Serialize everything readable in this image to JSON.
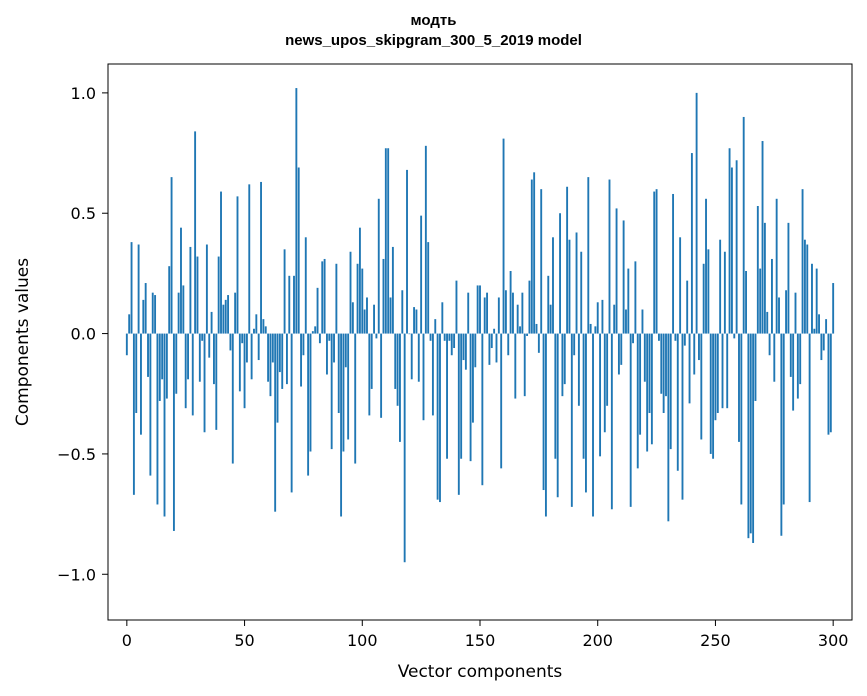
{
  "chart_data": {
    "type": "bar",
    "title": "модть",
    "subtitle": "news_upos_skipgram_300_5_2019 model",
    "xlabel": "Vector components",
    "ylabel": "Components values",
    "xlim": [
      -8,
      308
    ],
    "ylim": [
      -1.19,
      1.12
    ],
    "xticks": [
      0,
      50,
      100,
      150,
      200,
      250,
      300
    ],
    "yticks": [
      -1.0,
      -0.5,
      0.0,
      0.5,
      1.0
    ],
    "ytick_labels": [
      "−1.0",
      "−0.5",
      "0.0",
      "0.5",
      "1.0"
    ],
    "bar_color": "#1f77b4",
    "x": "0..299",
    "values": [
      -0.09,
      0.08,
      0.38,
      -0.67,
      -0.33,
      0.37,
      -0.42,
      0.14,
      0.21,
      -0.18,
      -0.59,
      0.17,
      0.16,
      -0.71,
      -0.28,
      -0.19,
      -0.76,
      -0.27,
      0.28,
      0.65,
      -0.82,
      -0.25,
      0.17,
      0.44,
      0.2,
      -0.31,
      -0.19,
      0.36,
      -0.34,
      0.84,
      0.32,
      -0.2,
      -0.03,
      -0.41,
      0.37,
      -0.1,
      0.09,
      -0.21,
      -0.4,
      0.32,
      0.59,
      0.12,
      0.14,
      0.16,
      -0.07,
      -0.54,
      0.17,
      0.57,
      -0.24,
      -0.04,
      -0.31,
      -0.12,
      0.62,
      -0.19,
      0.02,
      0.08,
      -0.11,
      0.63,
      0.06,
      0.03,
      -0.2,
      -0.26,
      -0.12,
      -0.74,
      -0.37,
      -0.16,
      -0.23,
      0.35,
      -0.21,
      0.24,
      -0.66,
      0.24,
      1.02,
      0.69,
      -0.22,
      -0.09,
      0.4,
      -0.59,
      -0.49,
      0.01,
      0.03,
      0.19,
      -0.04,
      0.3,
      0.31,
      -0.17,
      -0.03,
      -0.48,
      -0.12,
      0.29,
      -0.33,
      -0.76,
      -0.49,
      -0.14,
      -0.44,
      0.34,
      0.13,
      -0.54,
      0.29,
      0.44,
      0.27,
      0.1,
      0.15,
      -0.34,
      -0.23,
      0.12,
      -0.02,
      0.56,
      -0.35,
      0.31,
      0.77,
      0.77,
      0.15,
      0.36,
      -0.23,
      -0.3,
      -0.45,
      0.18,
      -0.95,
      0.68,
      0.0,
      -0.19,
      0.11,
      0.1,
      -0.2,
      0.49,
      -0.36,
      0.78,
      0.38,
      -0.03,
      -0.34,
      0.06,
      -0.69,
      -0.7,
      0.13,
      -0.03,
      -0.52,
      -0.03,
      -0.09,
      -0.06,
      0.22,
      -0.67,
      -0.52,
      -0.11,
      -0.15,
      0.17,
      -0.53,
      -0.37,
      -0.14,
      0.2,
      0.2,
      -0.63,
      0.15,
      0.17,
      -0.13,
      -0.06,
      0.02,
      -0.12,
      0.15,
      -0.56,
      0.81,
      0.18,
      -0.09,
      0.26,
      0.17,
      -0.27,
      0.12,
      0.03,
      0.17,
      -0.26,
      -0.01,
      0.22,
      0.64,
      0.67,
      0.04,
      -0.08,
      0.6,
      -0.65,
      -0.76,
      0.24,
      0.12,
      0.4,
      -0.52,
      -0.68,
      0.5,
      -0.26,
      -0.21,
      0.61,
      0.39,
      -0.72,
      -0.09,
      0.42,
      -0.3,
      0.34,
      -0.52,
      -0.66,
      0.65,
      0.04,
      -0.76,
      0.03,
      0.13,
      -0.51,
      0.14,
      -0.41,
      -0.3,
      0.64,
      -0.73,
      0.12,
      0.52,
      -0.17,
      -0.13,
      0.47,
      0.1,
      0.27,
      -0.72,
      -0.04,
      0.3,
      -0.56,
      -0.42,
      0.1,
      -0.2,
      -0.49,
      -0.33,
      -0.46,
      0.59,
      0.6,
      -0.03,
      -0.25,
      -0.33,
      -0.26,
      -0.78,
      -0.48,
      0.58,
      -0.03,
      -0.57,
      0.4,
      -0.69,
      -0.05,
      0.22,
      -0.29,
      0.75,
      -0.17,
      1.0,
      -0.11,
      -0.44,
      0.29,
      0.56,
      0.35,
      -0.5,
      -0.52,
      -0.36,
      -0.33,
      0.39,
      -0.31,
      0.34,
      -0.31,
      0.77,
      0.69,
      -0.02,
      0.72,
      -0.45,
      -0.71,
      0.9,
      0.26,
      -0.85,
      -0.83,
      -0.87,
      -0.28,
      0.53,
      0.27,
      0.8,
      0.46,
      0.09,
      -0.09,
      0.31,
      -0.2,
      0.56,
      0.15,
      -0.84,
      -0.71,
      0.18,
      0.46,
      -0.18,
      -0.32,
      0.17,
      -0.27,
      -0.21,
      0.6,
      0.39,
      0.37,
      -0.7,
      0.29,
      0.02,
      0.27,
      0.08,
      -0.11,
      -0.07,
      0.06,
      -0.42,
      -0.41,
      0.21
    ]
  }
}
